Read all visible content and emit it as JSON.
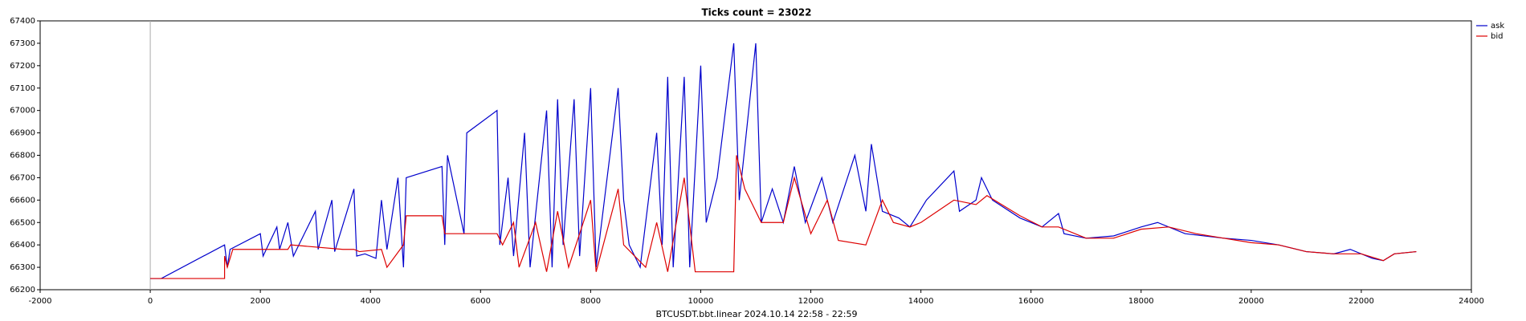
{
  "chart_data": {
    "type": "line",
    "title": "Ticks count = 23022",
    "xlabel": "BTCUSDT.bbt.linear 2024.10.14 22:58 - 22:59",
    "xlim": [
      -2000,
      24000
    ],
    "xticks": [
      -2000,
      0,
      2000,
      4000,
      6000,
      8000,
      10000,
      12000,
      14000,
      16000,
      18000,
      20000,
      22000,
      24000
    ],
    "ylim": [
      66200,
      67400
    ],
    "yticks": [
      66200,
      66300,
      66400,
      66500,
      66600,
      66700,
      66800,
      66900,
      67000,
      67100,
      67200,
      67300,
      67400
    ],
    "vline_x": 0,
    "legend": "outside-upper-right",
    "series": [
      {
        "name": "ask",
        "color": "#0000cc",
        "x": [
          0,
          200,
          1350,
          1400,
          1450,
          2000,
          2050,
          2300,
          2350,
          2500,
          2600,
          3000,
          3050,
          3300,
          3350,
          3700,
          3750,
          3900,
          4100,
          4200,
          4300,
          4500,
          4600,
          4650,
          5300,
          5350,
          5400,
          5700,
          5750,
          6300,
          6350,
          6500,
          6600,
          6800,
          6900,
          7200,
          7300,
          7400,
          7500,
          7700,
          7800,
          8000,
          8100,
          8500,
          8600,
          8700,
          8900,
          9200,
          9300,
          9400,
          9500,
          9700,
          9800,
          10000,
          10100,
          10300,
          10600,
          10700,
          11000,
          11100,
          11300,
          11500,
          11700,
          11900,
          12200,
          12400,
          12800,
          13000,
          13100,
          13300,
          13600,
          13800,
          14100,
          14600,
          14700,
          15000,
          15100,
          15300,
          15800,
          16200,
          16500,
          16600,
          17000,
          17500,
          18000,
          18300,
          18800,
          19500,
          20000,
          20500,
          21000,
          21500,
          21800,
          22200,
          22400,
          22600,
          23000
        ],
        "values": [
          66250,
          66250,
          66400,
          66300,
          66380,
          66450,
          66350,
          66480,
          66380,
          66500,
          66350,
          66550,
          66380,
          66600,
          66370,
          66650,
          66350,
          66360,
          66340,
          66600,
          66380,
          66700,
          66300,
          66700,
          66750,
          66400,
          66800,
          66450,
          66900,
          67000,
          66400,
          66700,
          66350,
          66900,
          66300,
          67000,
          66300,
          67050,
          66400,
          67050,
          66350,
          67100,
          66300,
          67100,
          66600,
          66400,
          66300,
          66900,
          66400,
          67150,
          66300,
          67150,
          66300,
          67200,
          66500,
          66700,
          67300,
          66600,
          67300,
          66500,
          66650,
          66500,
          66750,
          66500,
          66700,
          66500,
          66800,
          66550,
          66850,
          66550,
          66520,
          66480,
          66600,
          66730,
          66550,
          66600,
          66700,
          66600,
          66520,
          66480,
          66540,
          66450,
          66430,
          66440,
          66480,
          66500,
          66450,
          66430,
          66420,
          66400,
          66370,
          66360,
          66380,
          66340,
          66330,
          66360,
          66370
        ]
      },
      {
        "name": "bid",
        "color": "#dd0000",
        "x": [
          0,
          200,
          1350,
          1350,
          1400,
          1500,
          2500,
          2550,
          3500,
          3700,
          3800,
          4200,
          4300,
          4600,
          4650,
          5300,
          5350,
          6300,
          6400,
          6600,
          6700,
          7000,
          7200,
          7400,
          7600,
          8000,
          8100,
          8500,
          8600,
          9000,
          9200,
          9400,
          9700,
          9900,
          10000,
          10600,
          10650,
          10800,
          11100,
          11500,
          11700,
          12000,
          12300,
          12500,
          13000,
          13300,
          13500,
          13800,
          14000,
          14600,
          15000,
          15200,
          15800,
          16200,
          16500,
          17000,
          17500,
          18000,
          18500,
          19000,
          19500,
          20000,
          20500,
          21000,
          21500,
          22000,
          22400,
          22600,
          23000
        ],
        "values": [
          66250,
          66250,
          66250,
          66350,
          66300,
          66380,
          66380,
          66400,
          66380,
          66380,
          66370,
          66380,
          66300,
          66400,
          66530,
          66530,
          66450,
          66450,
          66400,
          66500,
          66300,
          66500,
          66280,
          66550,
          66300,
          66600,
          66280,
          66650,
          66400,
          66300,
          66500,
          66280,
          66700,
          66280,
          66280,
          66280,
          66800,
          66650,
          66500,
          66500,
          66700,
          66450,
          66600,
          66420,
          66400,
          66600,
          66500,
          66480,
          66500,
          66600,
          66580,
          66620,
          66530,
          66480,
          66480,
          66430,
          66430,
          66470,
          66480,
          66450,
          66430,
          66410,
          66400,
          66370,
          66360,
          66360,
          66330,
          66360,
          66370
        ]
      }
    ]
  }
}
